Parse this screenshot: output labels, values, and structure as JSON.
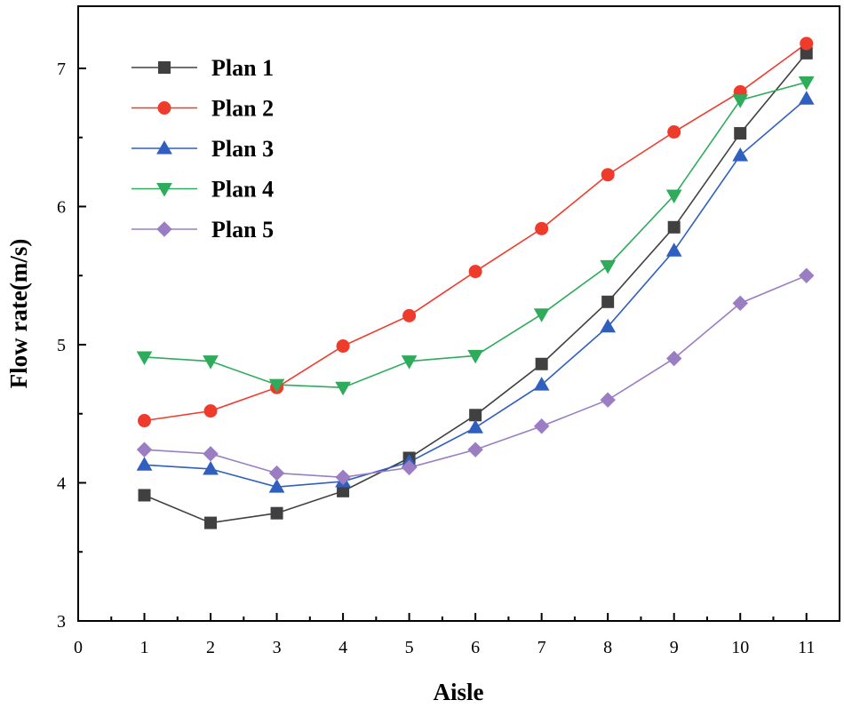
{
  "chart_data": {
    "type": "line",
    "xlabel": "Aisle",
    "ylabel": "Flow rate(m/s)",
    "xlim": [
      0,
      11.5
    ],
    "ylim": [
      3,
      7.45
    ],
    "xticks": [
      0,
      1,
      2,
      3,
      4,
      5,
      6,
      7,
      8,
      9,
      10,
      11
    ],
    "yticks": [
      3,
      4,
      5,
      6,
      7
    ],
    "legend_position": "top-left",
    "x": [
      1,
      2,
      3,
      4,
      5,
      6,
      7,
      8,
      9,
      10,
      11
    ],
    "series": [
      {
        "name": "Plan 1",
        "color": "#404040",
        "marker": "square",
        "values": [
          3.91,
          3.71,
          3.78,
          3.94,
          4.18,
          4.49,
          4.86,
          5.31,
          5.85,
          6.53,
          7.11
        ]
      },
      {
        "name": "Plan 2",
        "color": "#ef3b2c",
        "marker": "circle",
        "values": [
          4.45,
          4.52,
          4.69,
          4.99,
          5.21,
          5.53,
          5.84,
          6.23,
          6.54,
          6.83,
          7.18
        ]
      },
      {
        "name": "Plan 3",
        "color": "#2f5fbf",
        "marker": "triangle-up",
        "values": [
          4.13,
          4.1,
          3.97,
          4.01,
          4.15,
          4.4,
          4.71,
          5.13,
          5.68,
          6.37,
          6.78
        ]
      },
      {
        "name": "Plan 4",
        "color": "#2eab5b",
        "marker": "triangle-down",
        "values": [
          4.91,
          4.88,
          4.71,
          4.69,
          4.88,
          4.92,
          5.22,
          5.57,
          6.08,
          6.77,
          6.9
        ]
      },
      {
        "name": "Plan 5",
        "color": "#9b7dc4",
        "marker": "diamond",
        "values": [
          4.24,
          4.21,
          4.07,
          4.04,
          4.11,
          4.24,
          4.41,
          4.6,
          4.9,
          5.3,
          5.5
        ]
      }
    ]
  }
}
